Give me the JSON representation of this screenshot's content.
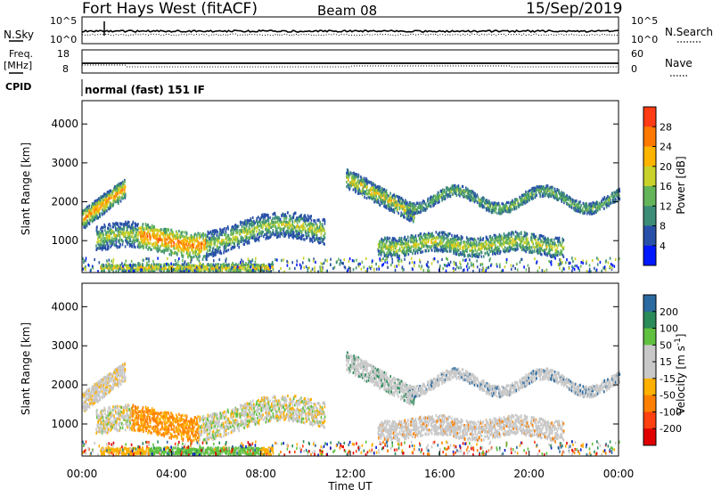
{
  "header": {
    "station": "Fort Hays West (fitACF)",
    "beam": "Beam 08",
    "date": "15/Sep/2019"
  },
  "top_panels": {
    "nsky_label": "N.Sky",
    "nsky_ticks": [
      "10^5",
      "10^0"
    ],
    "nsearch_label": "N.Search",
    "nsearch_ticks": [
      "10^5",
      "10^0"
    ],
    "freq_label_1": "Freq.",
    "freq_label_2": "[MHz]",
    "freq_ticks": [
      "18",
      "8"
    ],
    "nave_label": "Nave",
    "nave_ticks": [
      "60",
      "0"
    ],
    "cpid_label": "CPID",
    "cpid_text": "normal (fast) 151 IF"
  },
  "colors": {
    "power_scale": [
      "#0018ff",
      "#2850a8",
      "#3c8c78",
      "#64b45a",
      "#c8d22a",
      "#ffb400",
      "#ff7800",
      "#ff3c14",
      "#e00000"
    ],
    "velocity_scale": [
      "#e00000",
      "#ff4010",
      "#ff8000",
      "#ffb000",
      "#c8c8c8",
      "#c8c8c8",
      "#60c040",
      "#2a8a5a",
      "#2a6aa0",
      "#0018c8"
    ]
  },
  "chart_data": [
    {
      "type": "heatmap",
      "name": "power",
      "ylabel": "Slant Range [km]",
      "yticks": [
        "4000",
        "3000",
        "2000",
        "1000"
      ],
      "ylim": [
        180,
        4600
      ],
      "xlim": [
        0,
        24
      ],
      "colorbar_label": "Power [dB]",
      "colorbar_ticks": [
        "28",
        "24",
        "20",
        "16",
        "12",
        "8",
        "4"
      ],
      "colorbar_range": [
        0,
        32
      ],
      "features": [
        {
          "t0": 0.0,
          "t1": 1.9,
          "r0": 1400,
          "r1": 2600,
          "note": "band"
        },
        {
          "t0": 0.5,
          "t1": 10.8,
          "r0": 620,
          "r1": 1400,
          "note": "band"
        },
        {
          "t0": 1.0,
          "t1": 8.0,
          "r0": 180,
          "r1": 450,
          "note": "band"
        },
        {
          "t0": 11.5,
          "t1": 14.5,
          "r0": 1300,
          "r1": 2700,
          "note": "arc"
        },
        {
          "t0": 13.0,
          "t1": 20.5,
          "r0": 600,
          "r1": 1200,
          "note": "band"
        },
        {
          "t0": 14.0,
          "t1": 24.0,
          "r0": 1700,
          "r1": 2450,
          "note": "wave"
        }
      ]
    },
    {
      "type": "heatmap",
      "name": "velocity",
      "ylabel": "Slant Range [km]",
      "yticks": [
        "4000",
        "3000",
        "2000",
        "1000"
      ],
      "ylim": [
        180,
        4600
      ],
      "xlim": [
        0,
        24
      ],
      "colorbar_label": "Velocity [m s",
      "colorbar_label_sup": "-1",
      "colorbar_label_end": "]",
      "colorbar_ticks": [
        "200",
        "100",
        "50",
        "15",
        "-15",
        "-50",
        "-100",
        "-200"
      ],
      "colorbar_range": [
        -250,
        250
      ]
    }
  ],
  "xaxis": {
    "ticks": [
      "00:00",
      "04:00",
      "08:00",
      "12:00",
      "16:00",
      "20:00",
      "00:00"
    ],
    "label": "Time UT"
  }
}
